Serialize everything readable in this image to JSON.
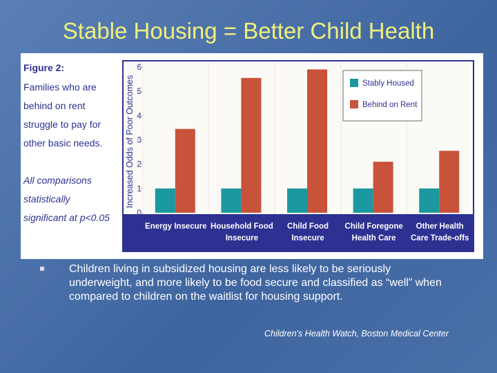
{
  "slide": {
    "title": "Stable Housing = Better Child Health",
    "bullet": "Children living in subsidized housing are less likely to be seriously underweight, and more likely to be food secure and classified as “well” when compared to children on the waitlist for housing support.",
    "source": "Children's Health Watch, Boston Medical Center"
  },
  "chart_data": {
    "type": "bar",
    "figure_label": "Figure 2:",
    "caption": "Families who are behind on rent struggle to pay for other basic needs.",
    "note": "All comparisons statistically significant at p<0.05",
    "y_label": "Increased Odds of Poor Outcomes",
    "categories": [
      "Energy Insecure",
      "Household Food Insecure",
      "Child Food Insecure",
      "Child Foregone Health Care",
      "Other Health Care Trade-offs"
    ],
    "series": [
      {
        "name": "Stably Housed",
        "color": "#1b98a0",
        "values": [
          1,
          1,
          1,
          1,
          1
        ]
      },
      {
        "name": "Behind on Rent",
        "color": "#c9523a",
        "values": [
          3.45,
          5.55,
          5.9,
          2.1,
          2.55
        ]
      }
    ],
    "ylim": [
      0,
      6
    ],
    "yticks": [
      0,
      1,
      2,
      3,
      4,
      5,
      6
    ],
    "legend": "upper right"
  }
}
